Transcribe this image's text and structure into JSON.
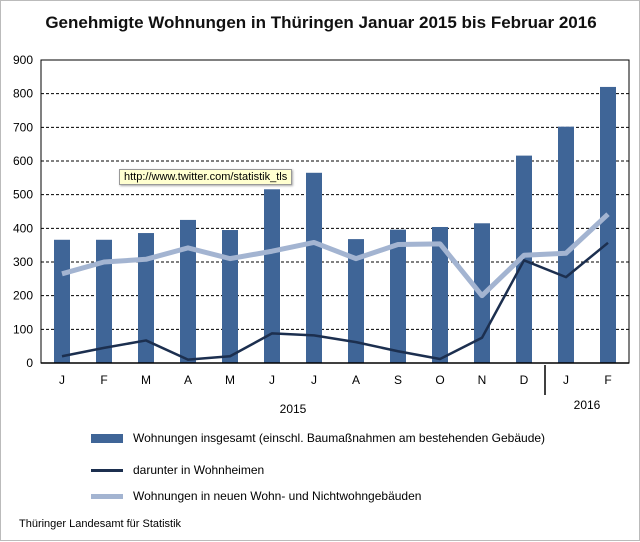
{
  "chart_data": {
    "type": "bar",
    "title": "Genehmigte Wohnungen in Thüringen Januar 2015 bis Februar 2016",
    "categories": [
      "J",
      "F",
      "M",
      "A",
      "M",
      "J",
      "J",
      "A",
      "S",
      "O",
      "N",
      "D",
      "J",
      "F"
    ],
    "year_labels": [
      {
        "label": "2015",
        "from": 0,
        "to": 11
      },
      {
        "label": "2016",
        "from": 12,
        "to": 13
      }
    ],
    "ylim": [
      0,
      900
    ],
    "yticks": [
      0,
      100,
      200,
      300,
      400,
      500,
      600,
      700,
      800,
      900
    ],
    "grid": true,
    "legend_placement": "bottom",
    "series": [
      {
        "name": "Wohnungen insgesamt (einschl. Baumaßnahmen am bestehenden Gebäude)",
        "type": "bar",
        "color": "#3f6597",
        "values": [
          366,
          366,
          386,
          425,
          395,
          516,
          565,
          368,
          396,
          404,
          415,
          616,
          702,
          820
        ]
      },
      {
        "name": "darunter in Wohnheimen",
        "type": "line",
        "color": "#1c2f4f",
        "values": [
          20,
          45,
          67,
          10,
          20,
          88,
          82,
          62,
          35,
          12,
          75,
          305,
          255,
          357
        ]
      },
      {
        "name": "Wohnungen in neuen Wohn- und Nichtwohngebäuden",
        "type": "line",
        "color": "#a3b4d1",
        "values": [
          265,
          300,
          308,
          342,
          310,
          332,
          358,
          310,
          352,
          354,
          200,
          320,
          326,
          442
        ]
      }
    ]
  },
  "tooltip": "http://www.twitter.com/statistik_tls",
  "source": "Thüringer Landesamt für Statistik"
}
